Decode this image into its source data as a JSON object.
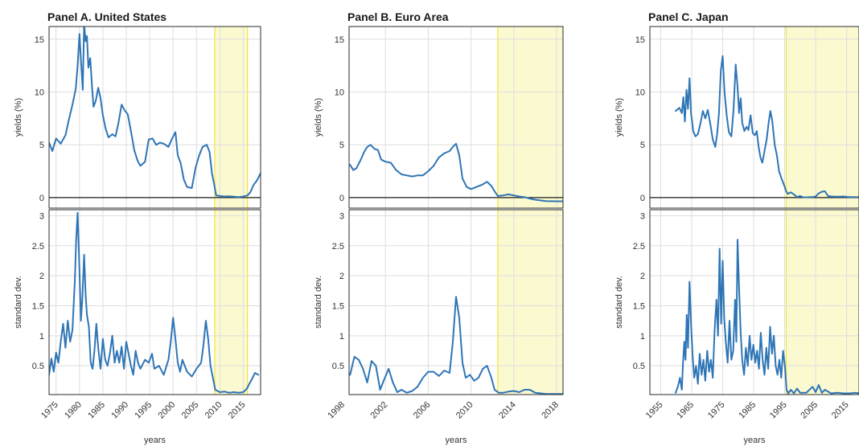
{
  "colors": {
    "series": "#2e75b6",
    "shade_fill": "#fbf9d0",
    "shade_edge": "#f2e33b",
    "grid": "#dedede"
  },
  "chart_data": [
    {
      "type": "line",
      "panel": "Panel A. United States",
      "row": "top",
      "title": "Panel A. United States",
      "xlabel": "",
      "ylabel": "yields (%)",
      "xlim": [
        1973.5,
        2018.7
      ],
      "ylim": [
        -1,
        16.2
      ],
      "xticks": [
        1975,
        1980,
        1985,
        1990,
        1995,
        2000,
        2005,
        2010,
        2015
      ],
      "yticks": [
        0,
        5,
        10,
        15
      ],
      "grid": true,
      "zero_line": true,
      "shaded": [
        [
          2008.9,
          2015.9
        ]
      ],
      "series": [
        {
          "x": [
            1973.5,
            1974.2,
            1975,
            1976,
            1977,
            1977.7,
            1978.5,
            1979.2,
            1979.6,
            1980,
            1980.3,
            1980.7,
            1981,
            1981.3,
            1981.6,
            1981.9,
            1982.3,
            1982.7,
            1983,
            1983.5,
            1984,
            1984.5,
            1985,
            1985.6,
            1986.2,
            1987,
            1987.7,
            1988.3,
            1989,
            1989.6,
            1990.3,
            1991,
            1991.7,
            1992.4,
            1993,
            1994,
            1994.8,
            1995.6,
            1996.4,
            1997.2,
            1998,
            1999,
            1999.8,
            2000.5,
            2001,
            2001.6,
            2002.3,
            2003,
            2004,
            2004.8,
            2005.5,
            2006.3,
            2007.2,
            2007.8,
            2008.3,
            2008.8,
            2009.2,
            2010,
            2011,
            2012,
            2013,
            2014,
            2015,
            2015.9,
            2016.5,
            2017.2,
            2017.9,
            2018.7
          ],
          "y": [
            5.2,
            4.4,
            5.6,
            5.1,
            5.9,
            7.3,
            8.8,
            10.3,
            12.5,
            15.5,
            13.1,
            10.2,
            16.5,
            14.8,
            15.3,
            12.3,
            13.2,
            10.4,
            8.6,
            9.2,
            10.4,
            9.4,
            7.8,
            6.5,
            5.7,
            6,
            5.8,
            7,
            8.8,
            8.3,
            7.9,
            6.3,
            4.5,
            3.5,
            3,
            3.4,
            5.5,
            5.6,
            5,
            5.2,
            5.1,
            4.8,
            5.6,
            6.2,
            4,
            3.3,
            1.7,
            1,
            0.9,
            2.8,
            3.9,
            4.8,
            5,
            4.3,
            2.3,
            1.2,
            0.2,
            0.15,
            0.1,
            0.12,
            0.08,
            0.05,
            0.1,
            0.2,
            0.5,
            1.2,
            1.6,
            2.3
          ]
        }
      ]
    },
    {
      "type": "line",
      "panel": "Panel A. United States",
      "row": "bottom",
      "title": "",
      "xlabel": "years",
      "ylabel": "standard dev.",
      "xlim": [
        1973.5,
        2018.7
      ],
      "ylim": [
        0.02,
        3.1
      ],
      "xticks": [
        1975,
        1980,
        1985,
        1990,
        1995,
        2000,
        2005,
        2010,
        2015
      ],
      "yticks": [
        0.5,
        1,
        1.5,
        2,
        2.5,
        3
      ],
      "grid": true,
      "shaded": [
        [
          2008.9,
          2015.9
        ]
      ],
      "series": [
        {
          "x": [
            1973.5,
            1974,
            1974.5,
            1975,
            1975.5,
            1976,
            1976.5,
            1977,
            1977.5,
            1978,
            1978.5,
            1979,
            1979.3,
            1979.6,
            1980,
            1980.3,
            1980.6,
            1981,
            1981.3,
            1981.6,
            1982,
            1982.4,
            1982.8,
            1983.2,
            1983.6,
            1984,
            1984.5,
            1985,
            1985.5,
            1986,
            1986.5,
            1987,
            1987.5,
            1988,
            1988.5,
            1989,
            1989.5,
            1990,
            1990.5,
            1991,
            1991.5,
            1992,
            1992.5,
            1993,
            1994,
            1994.8,
            1995.5,
            1996,
            1997,
            1998,
            1999,
            1999.5,
            2000,
            2000.5,
            2001,
            2001.5,
            2002,
            2003,
            2004,
            2005,
            2006,
            2006.5,
            2007,
            2007.5,
            2008,
            2008.5,
            2009,
            2010,
            2011,
            2012,
            2013,
            2014,
            2015,
            2015.8,
            2016.3,
            2017,
            2017.5,
            2018.2
          ],
          "y": [
            0.35,
            0.62,
            0.4,
            0.72,
            0.55,
            0.9,
            1.2,
            0.8,
            1.25,
            0.9,
            1.1,
            1.9,
            2.6,
            3.05,
            2.1,
            1.25,
            1.6,
            2.35,
            1.7,
            1.35,
            1.15,
            0.55,
            0.45,
            0.75,
            1.2,
            0.8,
            0.45,
            0.95,
            0.6,
            0.5,
            0.7,
            1.0,
            0.55,
            0.75,
            0.55,
            0.82,
            0.45,
            0.9,
            0.7,
            0.5,
            0.35,
            0.75,
            0.55,
            0.45,
            0.6,
            0.55,
            0.7,
            0.45,
            0.5,
            0.35,
            0.6,
            0.9,
            1.3,
            0.95,
            0.55,
            0.4,
            0.6,
            0.4,
            0.32,
            0.45,
            0.55,
            0.85,
            1.25,
            0.95,
            0.5,
            0.3,
            0.1,
            0.06,
            0.07,
            0.05,
            0.06,
            0.05,
            0.06,
            0.12,
            0.2,
            0.3,
            0.38,
            0.35
          ]
        }
      ]
    },
    {
      "type": "line",
      "panel": "Panel B. Euro Area",
      "row": "top",
      "title": "Panel B. Euro Area",
      "xlabel": "",
      "ylabel": "yields (%)",
      "xlim": [
        1998.6,
        2018.6
      ],
      "ylim": [
        -1,
        16.2
      ],
      "xticks": [
        1998,
        2002,
        2006,
        2010,
        2014,
        2018
      ],
      "yticks": [
        0,
        5,
        10,
        15
      ],
      "grid": true,
      "zero_line": true,
      "shaded": [
        [
          2012.5,
          2018.6
        ]
      ],
      "series": [
        {
          "x": [
            1998.7,
            1999,
            1999.3,
            1999.7,
            2000,
            2000.3,
            2000.6,
            2001,
            2001.3,
            2001.6,
            2002,
            2002.5,
            2003,
            2003.5,
            2004,
            2004.5,
            2005,
            2005.5,
            2006,
            2006.5,
            2007,
            2007.5,
            2008,
            2008.3,
            2008.6,
            2008.9,
            2009.2,
            2009.6,
            2010,
            2010.5,
            2011,
            2011.5,
            2011.9,
            2012.2,
            2012.5,
            2013,
            2013.5,
            2014,
            2014.5,
            2015,
            2015.5,
            2016,
            2017,
            2018,
            2018.6
          ],
          "y": [
            3.1,
            2.6,
            2.8,
            3.6,
            4.3,
            4.8,
            5.0,
            4.6,
            4.5,
            3.6,
            3.4,
            3.3,
            2.6,
            2.2,
            2.1,
            2.0,
            2.1,
            2.1,
            2.5,
            3.0,
            3.8,
            4.2,
            4.4,
            4.8,
            5.1,
            4.0,
            1.8,
            1.0,
            0.8,
            1.0,
            1.2,
            1.5,
            1.1,
            0.6,
            0.15,
            0.2,
            0.3,
            0.2,
            0.1,
            0.05,
            -0.1,
            -0.2,
            -0.33,
            -0.35,
            -0.35
          ]
        }
      ]
    },
    {
      "type": "line",
      "panel": "Panel B. Euro Area",
      "row": "bottom",
      "title": "",
      "xlabel": "years",
      "ylabel": "standard dev.",
      "xlim": [
        1998.6,
        2018.6
      ],
      "ylim": [
        0.02,
        3.1
      ],
      "xticks": [
        1998,
        2002,
        2006,
        2010,
        2014,
        2018
      ],
      "yticks": [
        0.5,
        1,
        1.5,
        2,
        2.5,
        3
      ],
      "grid": true,
      "shaded": [
        [
          2012.5,
          2018.6
        ]
      ],
      "series": [
        {
          "x": [
            1998.7,
            1999.1,
            1999.5,
            1999.9,
            2000.3,
            2000.7,
            2001.1,
            2001.5,
            2001.9,
            2002.3,
            2002.7,
            2003.1,
            2003.5,
            2004,
            2004.5,
            2005,
            2005.5,
            2006,
            2006.5,
            2007,
            2007.5,
            2008,
            2008.3,
            2008.6,
            2008.9,
            2009.2,
            2009.5,
            2009.9,
            2010.3,
            2010.7,
            2011.1,
            2011.5,
            2011.9,
            2012.2,
            2012.6,
            2013,
            2013.5,
            2014,
            2014.5,
            2015,
            2015.5,
            2016,
            2017,
            2018,
            2018.6
          ],
          "y": [
            0.35,
            0.65,
            0.6,
            0.45,
            0.22,
            0.58,
            0.5,
            0.1,
            0.28,
            0.45,
            0.22,
            0.06,
            0.1,
            0.05,
            0.08,
            0.15,
            0.3,
            0.4,
            0.4,
            0.33,
            0.42,
            0.38,
            0.9,
            1.65,
            1.3,
            0.55,
            0.3,
            0.35,
            0.25,
            0.3,
            0.45,
            0.5,
            0.3,
            0.1,
            0.05,
            0.05,
            0.07,
            0.08,
            0.06,
            0.1,
            0.1,
            0.05,
            0.03,
            0.03,
            0.03
          ]
        }
      ]
    },
    {
      "type": "line",
      "panel": "Panel C. Japan",
      "row": "top",
      "title": "Panel C. Japan",
      "xlabel": "",
      "ylabel": "yields (%)",
      "xlim": [
        1951.5,
        2019
      ],
      "ylim": [
        -1,
        16.2
      ],
      "xticks": [
        1955,
        1965,
        1975,
        1985,
        1995,
        2005,
        2015
      ],
      "yticks": [
        0,
        5,
        10,
        15
      ],
      "grid": true,
      "zero_line": true,
      "shaded": [
        [
          1995.5,
          2019
        ]
      ],
      "series": [
        {
          "x": [
            1959.8,
            1961,
            1961.8,
            1962.3,
            1962.8,
            1963.3,
            1963.8,
            1964.3,
            1964.8,
            1965.5,
            1966.2,
            1967,
            1967.8,
            1968.6,
            1969.4,
            1970.2,
            1971,
            1971.8,
            1972.6,
            1973.2,
            1973.8,
            1974.4,
            1975,
            1975.6,
            1976.3,
            1977,
            1977.8,
            1978.5,
            1979.2,
            1979.8,
            1980.3,
            1980.8,
            1981.3,
            1982,
            1982.7,
            1983.3,
            1984,
            1984.7,
            1985.4,
            1986,
            1986.6,
            1987.2,
            1987.8,
            1988.5,
            1989.2,
            1989.8,
            1990.4,
            1991,
            1991.8,
            1992.5,
            1993.2,
            1994,
            1994.8,
            1995.5,
            1996,
            1997,
            1998,
            1999,
            2000,
            2001,
            2002,
            2003,
            2004,
            2005,
            2006,
            2007,
            2008,
            2009,
            2010,
            2012,
            2014,
            2016,
            2018,
            2019
          ],
          "y": [
            8.2,
            8.5,
            8.0,
            9.5,
            7.2,
            10.2,
            8.4,
            11.3,
            8.0,
            6.3,
            5.8,
            6.0,
            7.0,
            8.2,
            7.5,
            8.3,
            7.0,
            5.5,
            4.8,
            6.0,
            8.0,
            12.0,
            13.4,
            10.0,
            7.8,
            6.2,
            5.8,
            8.3,
            12.6,
            10.5,
            8.0,
            9.4,
            7.1,
            6.3,
            6.7,
            6.4,
            7.8,
            6.1,
            5.9,
            6.3,
            4.8,
            3.8,
            3.3,
            4.4,
            5.5,
            7.0,
            8.2,
            7.3,
            5.0,
            4.0,
            2.5,
            1.8,
            1.2,
            0.6,
            0.35,
            0.5,
            0.3,
            0.05,
            0.15,
            0.02,
            0.02,
            0.05,
            0.05,
            0.1,
            0.4,
            0.55,
            0.6,
            0.15,
            0.1,
            0.08,
            0.1,
            0.05,
            0.05,
            0.05
          ]
        }
      ]
    },
    {
      "type": "line",
      "panel": "Panel C. Japan",
      "row": "bottom",
      "title": "",
      "xlabel": "years",
      "ylabel": "standard dev.",
      "xlim": [
        1951.5,
        2019
      ],
      "ylim": [
        0.02,
        3.1
      ],
      "xticks": [
        1955,
        1965,
        1975,
        1985,
        1995,
        2005,
        2015
      ],
      "yticks": [
        0.5,
        1,
        1.5,
        2,
        2.5,
        3
      ],
      "grid": true,
      "shaded": [
        [
          1995.5,
          2019
        ]
      ],
      "series": [
        {
          "x": [
            1959.8,
            1960.5,
            1961.2,
            1961.8,
            1962.2,
            1962.6,
            1963,
            1963.4,
            1963.8,
            1964.3,
            1964.8,
            1965.3,
            1965.8,
            1966.4,
            1967,
            1967.6,
            1968.2,
            1968.8,
            1969.4,
            1970,
            1970.6,
            1971.2,
            1971.8,
            1972.4,
            1973,
            1973.5,
            1974,
            1974.5,
            1975,
            1975.5,
            1976,
            1976.6,
            1977.2,
            1977.8,
            1978.4,
            1979,
            1979.4,
            1979.8,
            1980.3,
            1980.8,
            1981.3,
            1981.9,
            1982.5,
            1983.1,
            1983.7,
            1984.3,
            1984.9,
            1985.5,
            1986.1,
            1986.7,
            1987.3,
            1987.9,
            1988.5,
            1989.1,
            1989.7,
            1990.3,
            1990.9,
            1991.5,
            1992.1,
            1992.7,
            1993.3,
            1993.9,
            1994.5,
            1995.1,
            1995.6,
            1996.2,
            1997,
            1998,
            1999,
            2000,
            2002,
            2004,
            2005,
            2006,
            2007,
            2008,
            2010,
            2012,
            2014,
            2016,
            2018,
            2019
          ],
          "y": [
            0.05,
            0.15,
            0.3,
            0.1,
            0.55,
            0.9,
            0.6,
            1.35,
            0.8,
            1.9,
            1.2,
            0.65,
            0.3,
            0.5,
            0.2,
            0.7,
            0.35,
            0.6,
            0.25,
            0.75,
            0.4,
            0.6,
            0.3,
            1.1,
            1.6,
            1.0,
            2.45,
            1.2,
            2.25,
            1.3,
            0.9,
            0.55,
            1.25,
            0.6,
            0.75,
            1.6,
            0.9,
            2.6,
            1.8,
            1.05,
            0.6,
            0.35,
            0.8,
            0.5,
            1.0,
            0.6,
            0.85,
            0.55,
            0.75,
            0.45,
            1.05,
            0.6,
            0.35,
            0.8,
            0.45,
            1.15,
            0.7,
            1.0,
            0.5,
            0.35,
            0.6,
            0.3,
            0.75,
            0.5,
            0.1,
            0.04,
            0.1,
            0.04,
            0.12,
            0.05,
            0.05,
            0.15,
            0.06,
            0.18,
            0.05,
            0.1,
            0.04,
            0.05,
            0.04,
            0.04,
            0.05,
            0.04
          ]
        }
      ]
    }
  ]
}
